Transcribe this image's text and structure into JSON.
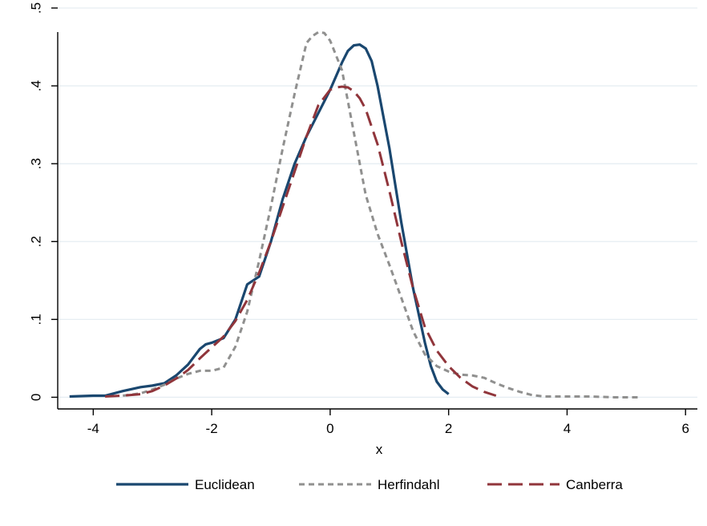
{
  "chart_data": {
    "type": "line",
    "title": "",
    "xlabel": "x",
    "ylabel": "",
    "xlim": [
      -4.6,
      6.2
    ],
    "ylim": [
      -0.015,
      0.5
    ],
    "grid": true,
    "legend_position": "bottom",
    "x_ticks": [
      {
        "value": -4,
        "label": "-4"
      },
      {
        "value": -2,
        "label": "-2"
      },
      {
        "value": 0,
        "label": "0"
      },
      {
        "value": 2,
        "label": "2"
      },
      {
        "value": 4,
        "label": "4"
      },
      {
        "value": 6,
        "label": "6"
      }
    ],
    "y_ticks": [
      {
        "value": 0,
        "label": "0"
      },
      {
        "value": 0.1,
        "label": ".1"
      },
      {
        "value": 0.2,
        "label": ".2"
      },
      {
        "value": 0.3,
        "label": ".3"
      },
      {
        "value": 0.4,
        "label": ".4"
      },
      {
        "value": 0.5,
        "label": ".5"
      }
    ],
    "series": [
      {
        "name": "Euclidean",
        "color": "#1a476f",
        "dash": "solid",
        "x": [
          -4.4,
          -4.0,
          -3.8,
          -3.5,
          -3.2,
          -3.0,
          -2.8,
          -2.6,
          -2.4,
          -2.2,
          -2.1,
          -2.0,
          -1.8,
          -1.6,
          -1.4,
          -1.2,
          -1.0,
          -0.8,
          -0.6,
          -0.4,
          -0.2,
          0.0,
          0.2,
          0.3,
          0.4,
          0.5,
          0.6,
          0.7,
          0.8,
          1.0,
          1.2,
          1.4,
          1.6,
          1.7,
          1.8,
          1.9,
          2.0
        ],
        "y": [
          0.001,
          0.002,
          0.002,
          0.008,
          0.013,
          0.015,
          0.018,
          0.028,
          0.042,
          0.062,
          0.068,
          0.07,
          0.076,
          0.1,
          0.145,
          0.155,
          0.2,
          0.255,
          0.3,
          0.335,
          0.365,
          0.395,
          0.43,
          0.445,
          0.452,
          0.453,
          0.448,
          0.432,
          0.4,
          0.32,
          0.225,
          0.14,
          0.07,
          0.04,
          0.02,
          0.01,
          0.004
        ]
      },
      {
        "name": "Herfindahl",
        "color": "#90908f",
        "dash": "short",
        "x": [
          -3.5,
          -3.2,
          -3.0,
          -2.8,
          -2.6,
          -2.4,
          -2.2,
          -2.0,
          -1.8,
          -1.6,
          -1.4,
          -1.2,
          -1.0,
          -0.8,
          -0.6,
          -0.4,
          -0.3,
          -0.2,
          -0.1,
          0.0,
          0.2,
          0.4,
          0.6,
          0.8,
          1.0,
          1.2,
          1.4,
          1.6,
          1.8,
          2.0,
          2.2,
          2.4,
          2.6,
          2.8,
          3.0,
          3.2,
          3.4,
          3.6,
          4.0,
          4.4,
          4.8,
          5.2
        ],
        "y": [
          0.002,
          0.005,
          0.01,
          0.016,
          0.024,
          0.03,
          0.034,
          0.034,
          0.038,
          0.065,
          0.11,
          0.175,
          0.245,
          0.32,
          0.39,
          0.455,
          0.464,
          0.469,
          0.468,
          0.458,
          0.42,
          0.34,
          0.26,
          0.21,
          0.17,
          0.128,
          0.085,
          0.055,
          0.04,
          0.033,
          0.029,
          0.028,
          0.025,
          0.018,
          0.012,
          0.007,
          0.003,
          0.001,
          0.001,
          0.001,
          0.0,
          0.0
        ]
      },
      {
        "name": "Canberra",
        "color": "#90353b",
        "dash": "long",
        "x": [
          -3.8,
          -3.5,
          -3.2,
          -3.0,
          -2.8,
          -2.6,
          -2.4,
          -2.2,
          -2.0,
          -1.8,
          -1.6,
          -1.4,
          -1.2,
          -1.0,
          -0.8,
          -0.6,
          -0.4,
          -0.2,
          0.0,
          0.1,
          0.2,
          0.3,
          0.4,
          0.5,
          0.6,
          0.8,
          1.0,
          1.2,
          1.4,
          1.6,
          1.8,
          2.0,
          2.2,
          2.4,
          2.6,
          2.8
        ],
        "y": [
          0.001,
          0.002,
          0.004,
          0.008,
          0.015,
          0.024,
          0.035,
          0.05,
          0.064,
          0.078,
          0.098,
          0.125,
          0.16,
          0.2,
          0.245,
          0.29,
          0.335,
          0.375,
          0.395,
          0.398,
          0.399,
          0.398,
          0.393,
          0.384,
          0.37,
          0.325,
          0.265,
          0.2,
          0.14,
          0.09,
          0.06,
          0.04,
          0.025,
          0.014,
          0.007,
          0.002
        ]
      }
    ]
  }
}
